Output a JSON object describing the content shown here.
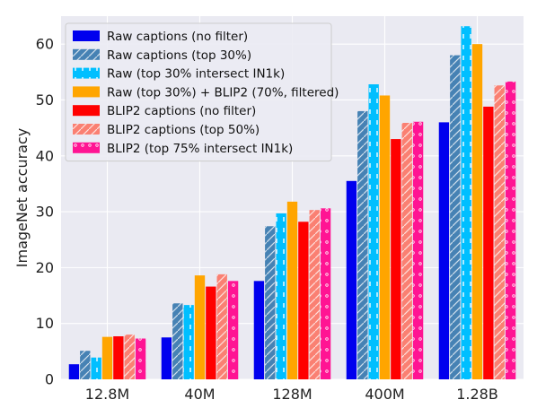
{
  "chart_data": {
    "type": "bar",
    "title": "",
    "xlabel": "",
    "ylabel": "ImageNet accuracy",
    "ylim": [
      0,
      65
    ],
    "yticks": [
      0,
      10,
      20,
      30,
      40,
      50,
      60
    ],
    "grid": true,
    "legend_position": "top-left",
    "categories": [
      "12.8M",
      "40M",
      "128M",
      "400M",
      "1.28B"
    ],
    "series": [
      {
        "name": "Raw captions (no filter)",
        "color": "#0000ee",
        "pattern": "solid",
        "values": [
          2.7,
          7.5,
          17.6,
          35.5,
          46.0
        ]
      },
      {
        "name": "Raw captions (top 30%)",
        "color": "#4682b4",
        "pattern": "diagonal-hatch",
        "values": [
          5.1,
          13.6,
          27.4,
          48.0,
          58.0
        ]
      },
      {
        "name": "Raw (top 30% intersect IN1k)",
        "color": "#00bfff",
        "pattern": "dashes",
        "values": [
          3.9,
          13.3,
          29.7,
          52.8,
          63.2
        ]
      },
      {
        "name": "Raw (top 30%) + BLIP2 (70%, filtered)",
        "color": "#ffa500",
        "pattern": "solid",
        "values": [
          7.6,
          18.6,
          31.8,
          50.8,
          60.0
        ]
      },
      {
        "name": "BLIP2 captions (no filter)",
        "color": "#ff0000",
        "pattern": "solid",
        "values": [
          7.7,
          16.6,
          28.2,
          43.0,
          48.8
        ]
      },
      {
        "name": "BLIP2 captions (top 50%)",
        "color": "#fa8072",
        "pattern": "diagonal-hatch",
        "values": [
          8.0,
          18.8,
          30.3,
          45.9,
          52.6
        ]
      },
      {
        "name": "BLIP2 (top 75% intersect IN1k)",
        "color": "#ff1493",
        "pattern": "dots",
        "values": [
          7.3,
          17.6,
          30.6,
          46.1,
          53.3
        ]
      }
    ]
  }
}
